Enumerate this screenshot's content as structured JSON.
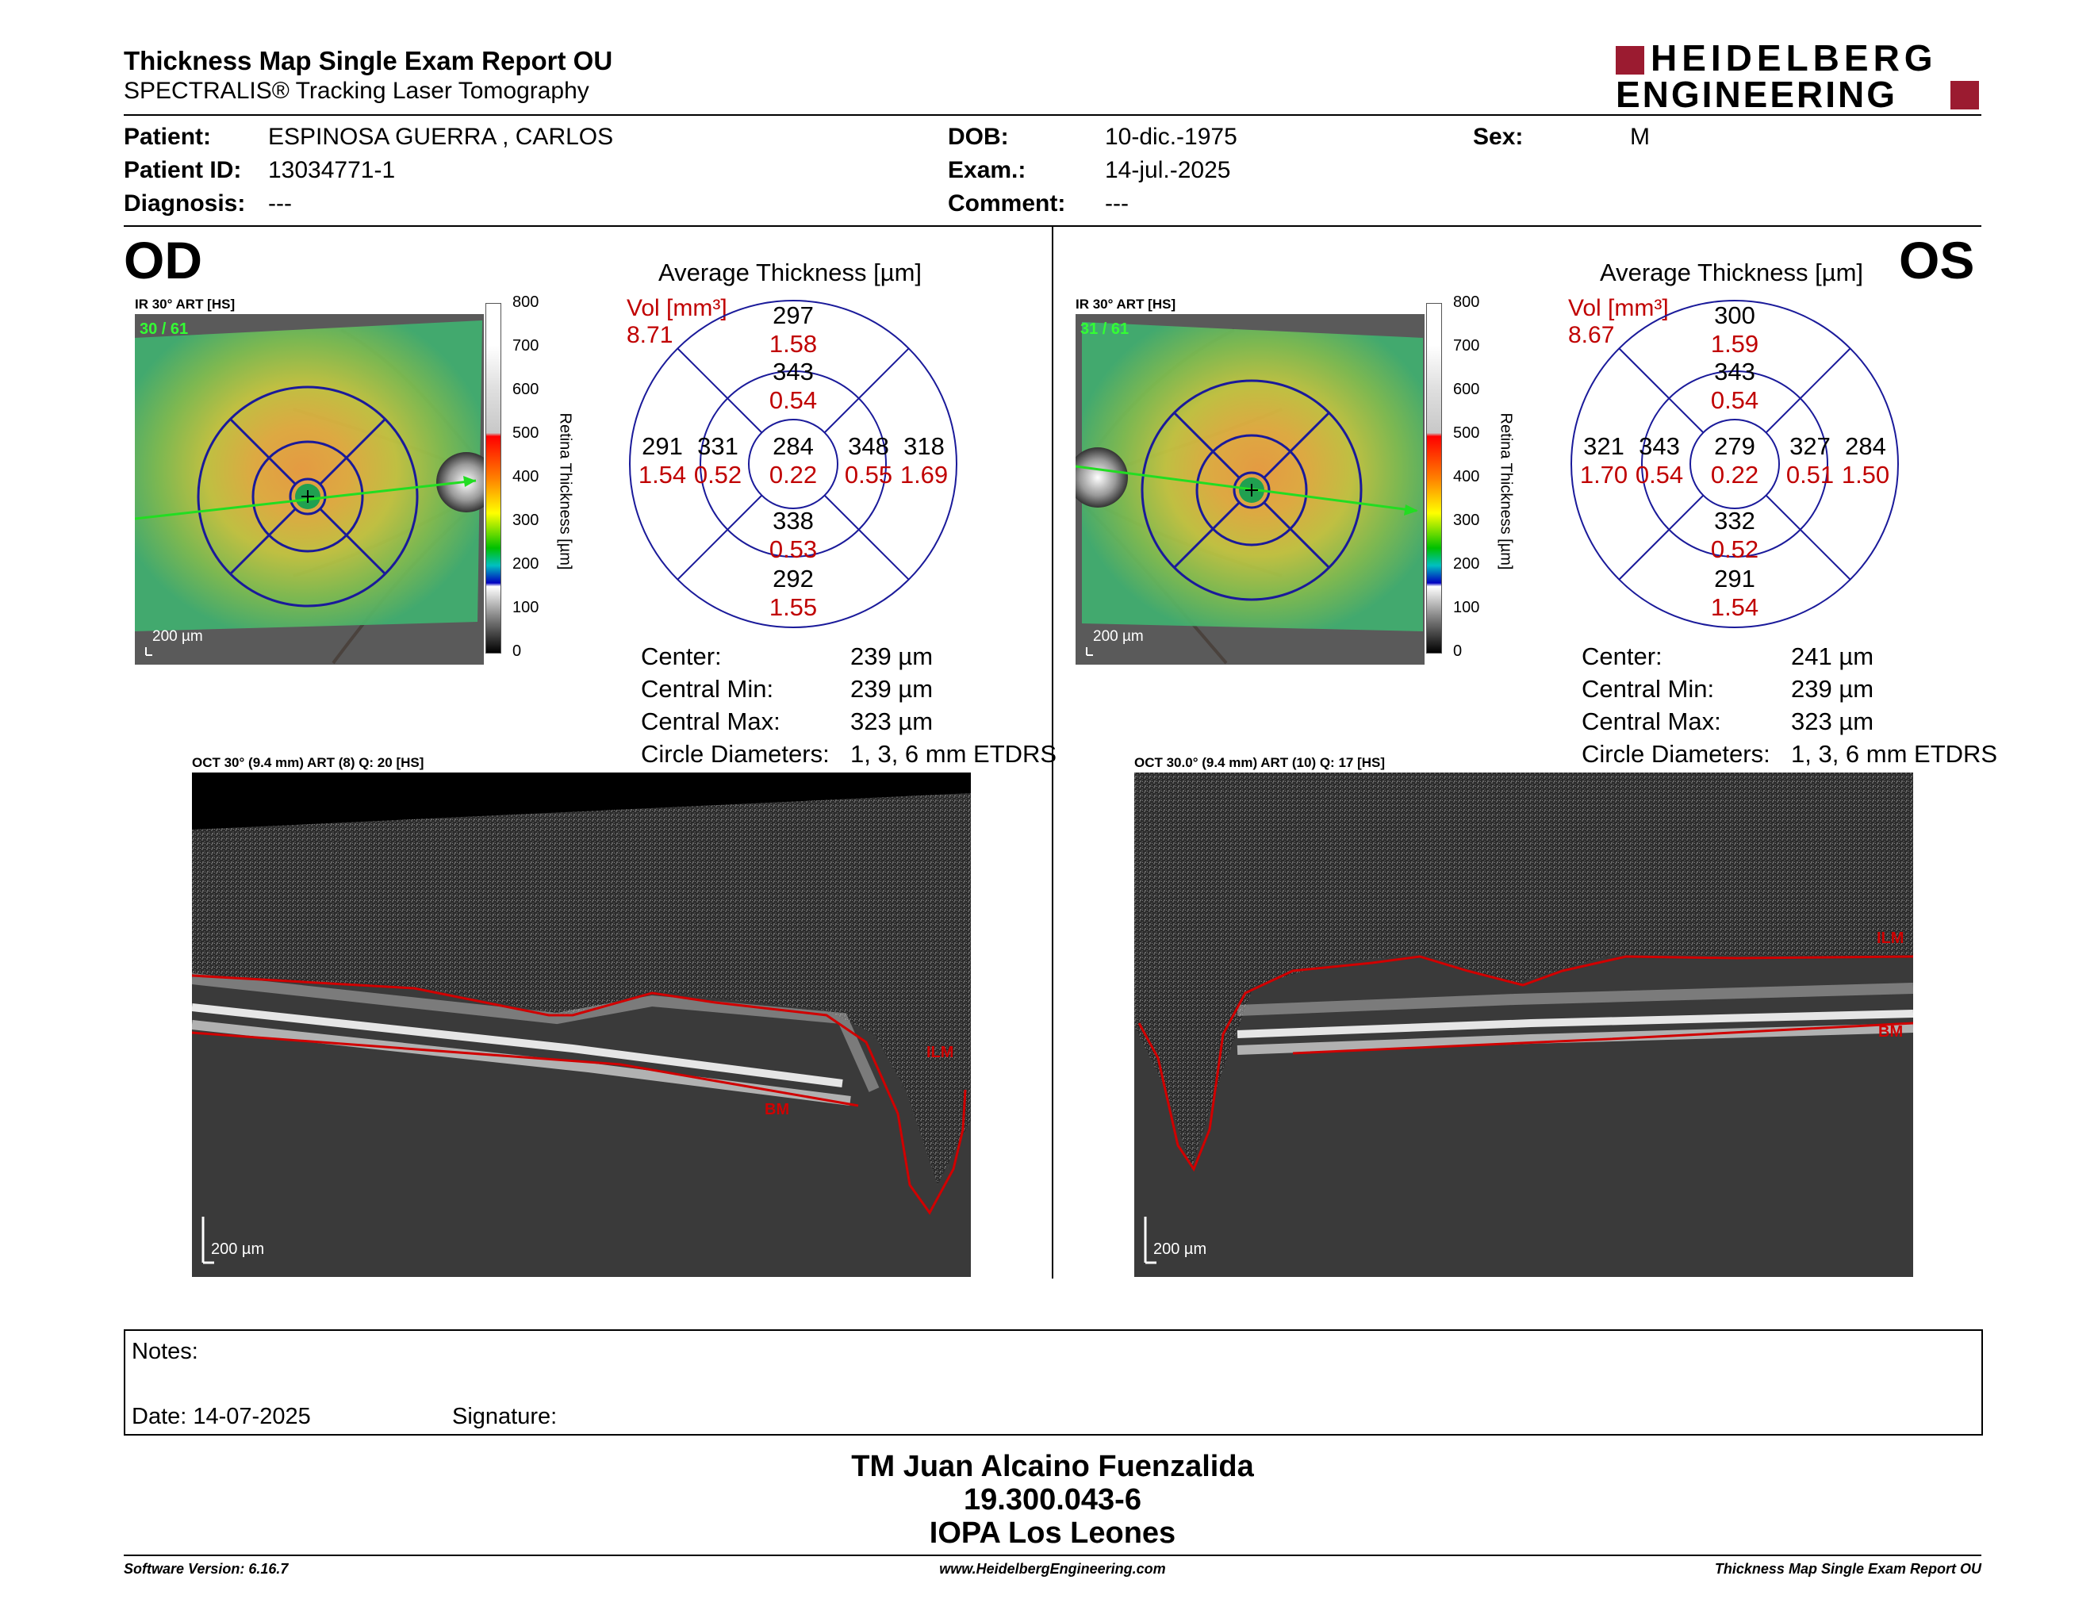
{
  "header": {
    "title": "Thickness Map Single Exam Report OU",
    "subtitle": "SPECTRALIS® Tracking Laser Tomography",
    "brand_line1": "HEIDELBERG",
    "brand_line2": "ENGINEERING",
    "brand_color": "#9b1b30"
  },
  "patient": {
    "patient_label": "Patient:",
    "patient_value": "ESPINOSA GUERRA , CARLOS",
    "id_label": "Patient ID:",
    "id_value": "13034771-1",
    "diagnosis_label": "Diagnosis:",
    "diagnosis_value": "---",
    "dob_label": "DOB:",
    "dob_value": "10-dic.-1975",
    "exam_label": "Exam.:",
    "exam_value": "14-jul.-2025",
    "comment_label": "Comment:",
    "comment_value": "---",
    "sex_label": "Sex:",
    "sex_value": "M"
  },
  "od": {
    "eye_label": "OD",
    "ir_caption": "IR 30° ART [HS]",
    "frames": "30 / 61",
    "scale_label": "200 µm",
    "avg_title": "Average Thickness [µm]",
    "vol_label": "Vol [mm³]",
    "vol_total": "8.71",
    "sectors": {
      "outer_sup": [
        "297",
        "1.58"
      ],
      "inner_sup": [
        "343",
        "0.54"
      ],
      "outer_temp": [
        "291",
        "1.54"
      ],
      "inner_temp": [
        "331",
        "0.52"
      ],
      "center": [
        "284",
        "0.22"
      ],
      "inner_nasal": [
        "348",
        "0.55"
      ],
      "outer_nasal": [
        "318",
        "1.69"
      ],
      "inner_inf": [
        "338",
        "0.53"
      ],
      "outer_inf": [
        "292",
        "1.55"
      ]
    },
    "stats": [
      {
        "label": "Center:",
        "value": "239 µm"
      },
      {
        "label": "Central Min:",
        "value": "239 µm"
      },
      {
        "label": "Central Max:",
        "value": "323 µm"
      },
      {
        "label": "Circle Diameters:",
        "value": "1, 3, 6 mm ETDRS"
      }
    ],
    "oct_caption": "OCT 30° (9.4 mm) ART (8) Q: 20 [HS]",
    "oct_scale": "200 µm",
    "ilm_label": "ILM",
    "bm_label": "BM"
  },
  "os": {
    "eye_label": "OS",
    "ir_caption": "IR 30° ART [HS]",
    "frames": "31 / 61",
    "scale_label": "200 µm",
    "avg_title": "Average Thickness [µm]",
    "vol_label": "Vol [mm³]",
    "vol_total": "8.67",
    "sectors": {
      "outer_sup": [
        "300",
        "1.59"
      ],
      "inner_sup": [
        "343",
        "0.54"
      ],
      "outer_temp": [
        "284",
        "1.50"
      ],
      "inner_temp": [
        "327",
        "0.51"
      ],
      "center": [
        "279",
        "0.22"
      ],
      "inner_nasal": [
        "343",
        "0.54"
      ],
      "outer_nasal": [
        "321",
        "1.70"
      ],
      "inner_inf": [
        "332",
        "0.52"
      ],
      "outer_inf": [
        "291",
        "1.54"
      ]
    },
    "stats": [
      {
        "label": "Center:",
        "value": "241 µm"
      },
      {
        "label": "Central Min:",
        "value": "239 µm"
      },
      {
        "label": "Central Max:",
        "value": "323 µm"
      },
      {
        "label": "Circle Diameters:",
        "value": "1, 3, 6 mm ETDRS"
      }
    ],
    "oct_caption": "OCT 30.0° (9.4 mm) ART (10) Q: 17 [HS]",
    "oct_scale": "200 µm",
    "ilm_label": "ILM",
    "bm_label": "BM"
  },
  "colorbar": {
    "ticks": [
      "800",
      "700",
      "600",
      "500",
      "400",
      "300",
      "200",
      "100",
      "0"
    ],
    "title": "Retina  Thickness [µm]"
  },
  "notes": {
    "notes_label": "Notes:",
    "date_label": "Date: 14-07-2025",
    "signature_label": "Signature:"
  },
  "signer": {
    "name": "TM Juan Alcaino Fuenzalida",
    "rut": "19.300.043-6",
    "clinic": "IOPA Los Leones"
  },
  "footer": {
    "software": "Software Version: 6.16.7",
    "website": "www.HeidelbergEngineering.com",
    "report": "Thickness Map Single Exam Report OU"
  }
}
